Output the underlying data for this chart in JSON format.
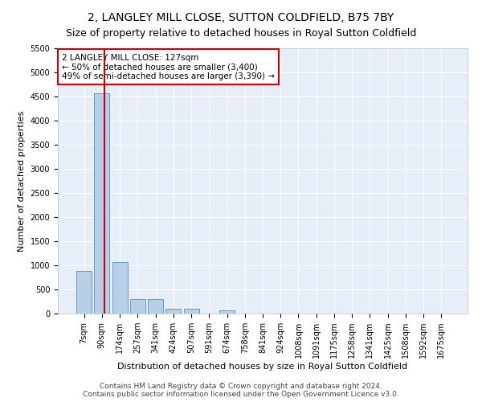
{
  "title": "2, LANGLEY MILL CLOSE, SUTTON COLDFIELD, B75 7BY",
  "subtitle": "Size of property relative to detached houses in Royal Sutton Coldfield",
  "xlabel": "Distribution of detached houses by size in Royal Sutton Coldfield",
  "ylabel": "Number of detached properties",
  "categories": [
    "7sqm",
    "90sqm",
    "174sqm",
    "257sqm",
    "341sqm",
    "424sqm",
    "507sqm",
    "591sqm",
    "674sqm",
    "758sqm",
    "841sqm",
    "924sqm",
    "1008sqm",
    "1091sqm",
    "1175sqm",
    "1258sqm",
    "1341sqm",
    "1425sqm",
    "1508sqm",
    "1592sqm",
    "1675sqm"
  ],
  "values": [
    880,
    4560,
    1060,
    295,
    295,
    95,
    95,
    0,
    60,
    0,
    0,
    0,
    0,
    0,
    0,
    0,
    0,
    0,
    0,
    0,
    0
  ],
  "bar_color": "#b8cfe8",
  "bar_edge_color": "#6699cc",
  "vline_x_data": 1.15,
  "vline_color": "#cc0000",
  "annotation_text": "2 LANGLEY MILL CLOSE: 127sqm\n← 50% of detached houses are smaller (3,400)\n49% of semi-detached houses are larger (3,390) →",
  "annotation_box_color": "#ffffff",
  "annotation_box_edge": "#cc0000",
  "ylim": [
    0,
    5500
  ],
  "yticks": [
    0,
    500,
    1000,
    1500,
    2000,
    2500,
    3000,
    3500,
    4000,
    4500,
    5000,
    5500
  ],
  "background_color": "#e8eef7",
  "footer_line1": "Contains HM Land Registry data © Crown copyright and database right 2024.",
  "footer_line2": "Contains public sector information licensed under the Open Government Licence v3.0.",
  "title_fontsize": 10,
  "subtitle_fontsize": 9,
  "xlabel_fontsize": 8,
  "ylabel_fontsize": 8,
  "tick_fontsize": 7,
  "footer_fontsize": 6.5,
  "annotation_fontsize": 7.5
}
